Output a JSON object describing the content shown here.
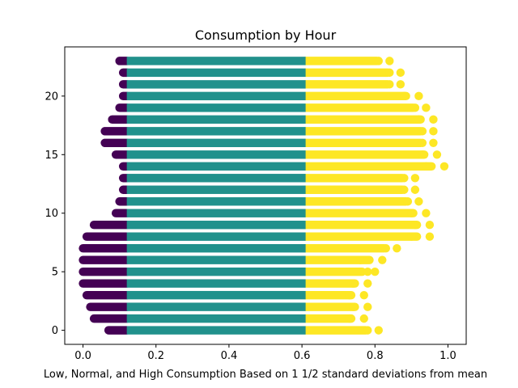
{
  "chart_data": {
    "type": "scatter",
    "title": "Consumption by Hour",
    "xlabel": "Low, Normal, and High Consumption Based on 1 1/2 standard deviations from mean",
    "ylabel": "",
    "xlim": [
      -0.05,
      1.05
    ],
    "ylim": [
      -1.2,
      24.2
    ],
    "xticks": [
      "0.0",
      "0.2",
      "0.4",
      "0.6",
      "0.8",
      "1.0"
    ],
    "yticks": [
      "0",
      "5",
      "10",
      "15",
      "20"
    ],
    "grid": false,
    "legend": "none",
    "colors": {
      "low": "#440154",
      "normal": "#21918c",
      "high": "#fde725"
    },
    "band_boundaries": {
      "low_to_normal": 0.12,
      "normal_to_high": 0.61
    },
    "hours": [
      {
        "hour": 0,
        "low_min": 0.07,
        "high_max": 0.81
      },
      {
        "hour": 1,
        "low_min": 0.03,
        "high_max": 0.77
      },
      {
        "hour": 2,
        "low_min": 0.02,
        "high_max": 0.78
      },
      {
        "hour": 3,
        "low_min": 0.01,
        "high_max": 0.77
      },
      {
        "hour": 4,
        "low_min": 0.0,
        "high_max": 0.78
      },
      {
        "hour": 5,
        "low_min": 0.0,
        "high_max": 0.8
      },
      {
        "hour": 6,
        "low_min": 0.0,
        "high_max": 0.82
      },
      {
        "hour": 7,
        "low_min": 0.0,
        "high_max": 0.86
      },
      {
        "hour": 8,
        "low_min": 0.01,
        "high_max": 0.95
      },
      {
        "hour": 9,
        "low_min": 0.03,
        "high_max": 0.95
      },
      {
        "hour": 10,
        "low_min": 0.09,
        "high_max": 0.94
      },
      {
        "hour": 11,
        "low_min": 0.1,
        "high_max": 0.92
      },
      {
        "hour": 12,
        "low_min": 0.11,
        "high_max": 0.91
      },
      {
        "hour": 13,
        "low_min": 0.11,
        "high_max": 0.91
      },
      {
        "hour": 14,
        "low_min": 0.11,
        "high_max": 0.99
      },
      {
        "hour": 15,
        "low_min": 0.09,
        "high_max": 0.97
      },
      {
        "hour": 16,
        "low_min": 0.06,
        "high_max": 0.96
      },
      {
        "hour": 17,
        "low_min": 0.06,
        "high_max": 0.96
      },
      {
        "hour": 18,
        "low_min": 0.08,
        "high_max": 0.96
      },
      {
        "hour": 19,
        "low_min": 0.1,
        "high_max": 0.94
      },
      {
        "hour": 20,
        "low_min": 0.11,
        "high_max": 0.92
      },
      {
        "hour": 21,
        "low_min": 0.11,
        "high_max": 0.87
      },
      {
        "hour": 22,
        "low_min": 0.11,
        "high_max": 0.87
      },
      {
        "hour": 23,
        "low_min": 0.1,
        "high_max": 0.84
      }
    ],
    "high_outliers": [
      {
        "hour": 0,
        "x": [
          0.78,
          0.81
        ]
      },
      {
        "hour": 1,
        "x": [
          0.73,
          0.77
        ]
      },
      {
        "hour": 2,
        "x": [
          0.74,
          0.78
        ]
      },
      {
        "hour": 3,
        "x": [
          0.73,
          0.77
        ]
      },
      {
        "hour": 4,
        "x": [
          0.74,
          0.78
        ]
      },
      {
        "hour": 5,
        "x": [
          0.78,
          0.8
        ]
      },
      {
        "hour": 6,
        "x": [
          0.76,
          0.82
        ]
      },
      {
        "hour": 7,
        "x": [
          0.83,
          0.86
        ]
      },
      {
        "hour": 8,
        "x": [
          0.9,
          0.95
        ]
      },
      {
        "hour": 9,
        "x": [
          0.91,
          0.95
        ]
      },
      {
        "hour": 10,
        "x": [
          0.9,
          0.94
        ]
      },
      {
        "hour": 11,
        "x": [
          0.89,
          0.92
        ]
      },
      {
        "hour": 12,
        "x": [
          0.88,
          0.91
        ]
      },
      {
        "hour": 13,
        "x": [
          0.88,
          0.91
        ]
      },
      {
        "hour": 14,
        "x": [
          0.94,
          0.99
        ]
      },
      {
        "hour": 15,
        "x": [
          0.93,
          0.97
        ]
      },
      {
        "hour": 16,
        "x": [
          0.93,
          0.96
        ]
      },
      {
        "hour": 17,
        "x": [
          0.93,
          0.96
        ]
      },
      {
        "hour": 18,
        "x": [
          0.92,
          0.96
        ]
      },
      {
        "hour": 19,
        "x": [
          0.91,
          0.94
        ]
      },
      {
        "hour": 20,
        "x": [
          0.88,
          0.92
        ]
      },
      {
        "hour": 21,
        "x": [
          0.84,
          0.87
        ]
      },
      {
        "hour": 22,
        "x": [
          0.84,
          0.87
        ]
      },
      {
        "hour": 23,
        "x": [
          0.81,
          0.84
        ]
      }
    ]
  }
}
